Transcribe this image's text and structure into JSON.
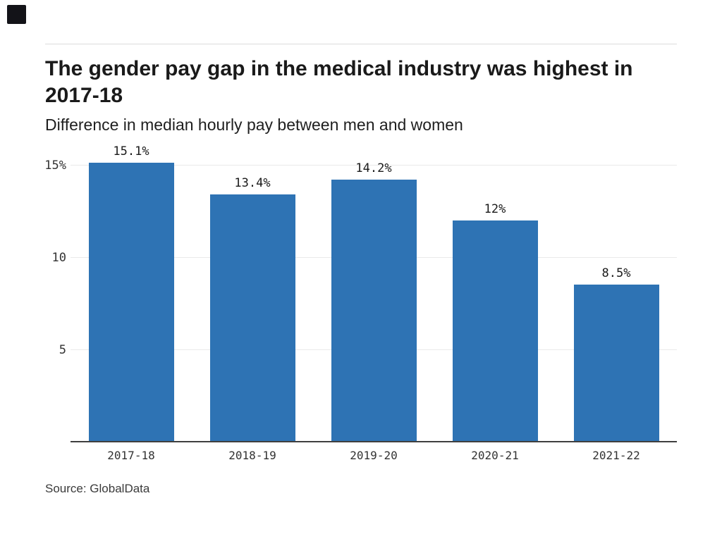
{
  "page": {
    "background": "#ffffff"
  },
  "logo": {
    "name": "brand-logo-square",
    "color": "#131318"
  },
  "header": {
    "title_lines": [
      "The gender pay gap in the medical industry was highest in",
      "2017-18"
    ],
    "subtitle": "Difference in median hourly pay between men and women"
  },
  "chart_data": {
    "type": "bar",
    "title": "The gender pay gap in the medical industry was highest in 2017-18",
    "subtitle": "Difference in median hourly pay between men and women",
    "categories": [
      "2017-18",
      "2018-19",
      "2019-20",
      "2020-21",
      "2021-22"
    ],
    "values": [
      15.1,
      13.4,
      14.2,
      12,
      8.5
    ],
    "value_labels": [
      "15.1%",
      "13.4%",
      "14.2%",
      "12%",
      "8.5%"
    ],
    "yticks": [
      {
        "value": 15,
        "label": "15%"
      },
      {
        "value": 10,
        "label": "10"
      },
      {
        "value": 5,
        "label": "5"
      }
    ],
    "ylim": [
      0,
      16.5
    ],
    "grid": "horizontal",
    "legend": "none",
    "bar_color": "#2e73b4",
    "axis_color": "#3f3f3f",
    "grid_color": "#e9e9e9",
    "xlabel": "",
    "ylabel": ""
  },
  "footer": {
    "source": "Source: GlobalData"
  }
}
